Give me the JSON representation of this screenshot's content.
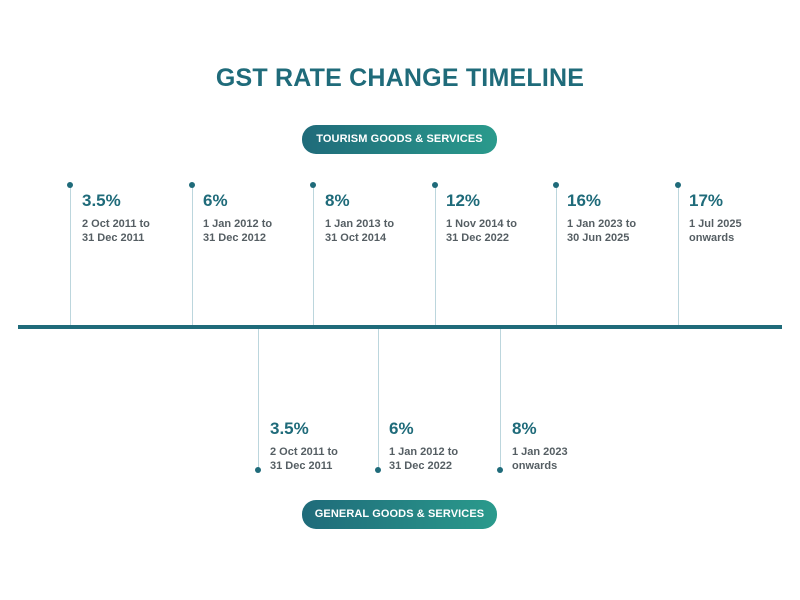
{
  "title": "GST RATE CHANGE TIMELINE",
  "tourism": {
    "label": "TOURISM GOODS & SERVICES",
    "entries": [
      {
        "rate": "3.5%",
        "line1": "2 Oct 2011 to",
        "line2": "31 Dec 2011"
      },
      {
        "rate": "6%",
        "line1": "1 Jan 2012 to",
        "line2": "31 Dec 2012"
      },
      {
        "rate": "8%",
        "line1": "1 Jan 2013 to",
        "line2": "31 Oct 2014"
      },
      {
        "rate": "12%",
        "line1": "1 Nov 2014 to",
        "line2": "31 Dec 2022"
      },
      {
        "rate": "16%",
        "line1": "1 Jan 2023 to",
        "line2": "30 Jun 2025"
      },
      {
        "rate": "17%",
        "line1": "1 Jul 2025",
        "line2": "onwards"
      }
    ]
  },
  "general": {
    "label": "GENERAL GOODS & SERVICES",
    "entries": [
      {
        "rate": "3.5%",
        "line1": "2 Oct 2011 to",
        "line2": "31 Dec 2011"
      },
      {
        "rate": "6%",
        "line1": "1 Jan 2012 to",
        "line2": "31 Dec 2022"
      },
      {
        "rate": "8%",
        "line1": "1 Jan 2023",
        "line2": "onwards"
      }
    ]
  }
}
